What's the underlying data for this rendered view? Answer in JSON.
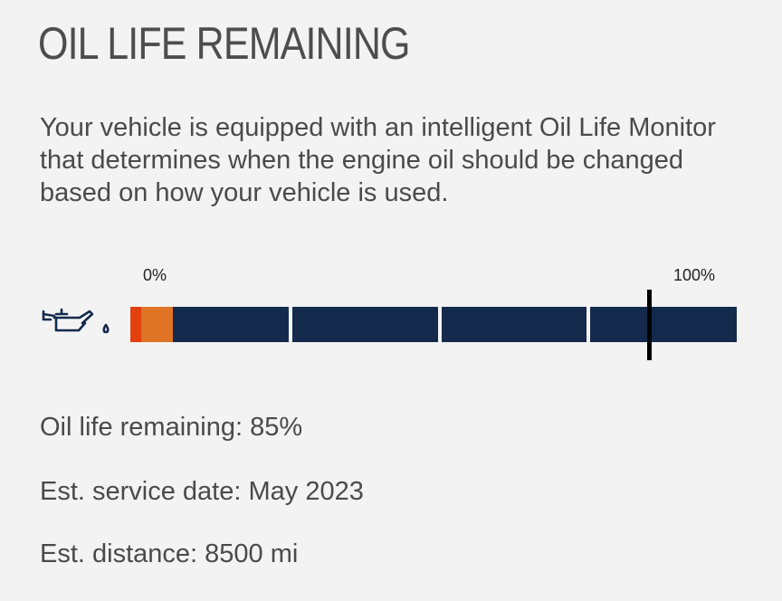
{
  "header": {
    "title": "OIL LIFE REMAINING"
  },
  "description": "Your vehicle is equipped with an intelligent Oil Life Monitor that determines when the engine oil should be changed based on how your vehicle is used.",
  "gauge": {
    "icon": "oil-can-icon",
    "min_label": "0%",
    "max_label": "100%",
    "level_percent": 85,
    "segment_count": 4,
    "colors": {
      "bar": "#132a4d",
      "warning_red": "#e2400f",
      "warning_orange": "#e07426",
      "marker": "#000000"
    }
  },
  "stats": {
    "oil_life": "Oil life remaining: 85%",
    "service_date": "Est. service date: May 2023",
    "distance": "Est. distance: 8500 mi"
  }
}
